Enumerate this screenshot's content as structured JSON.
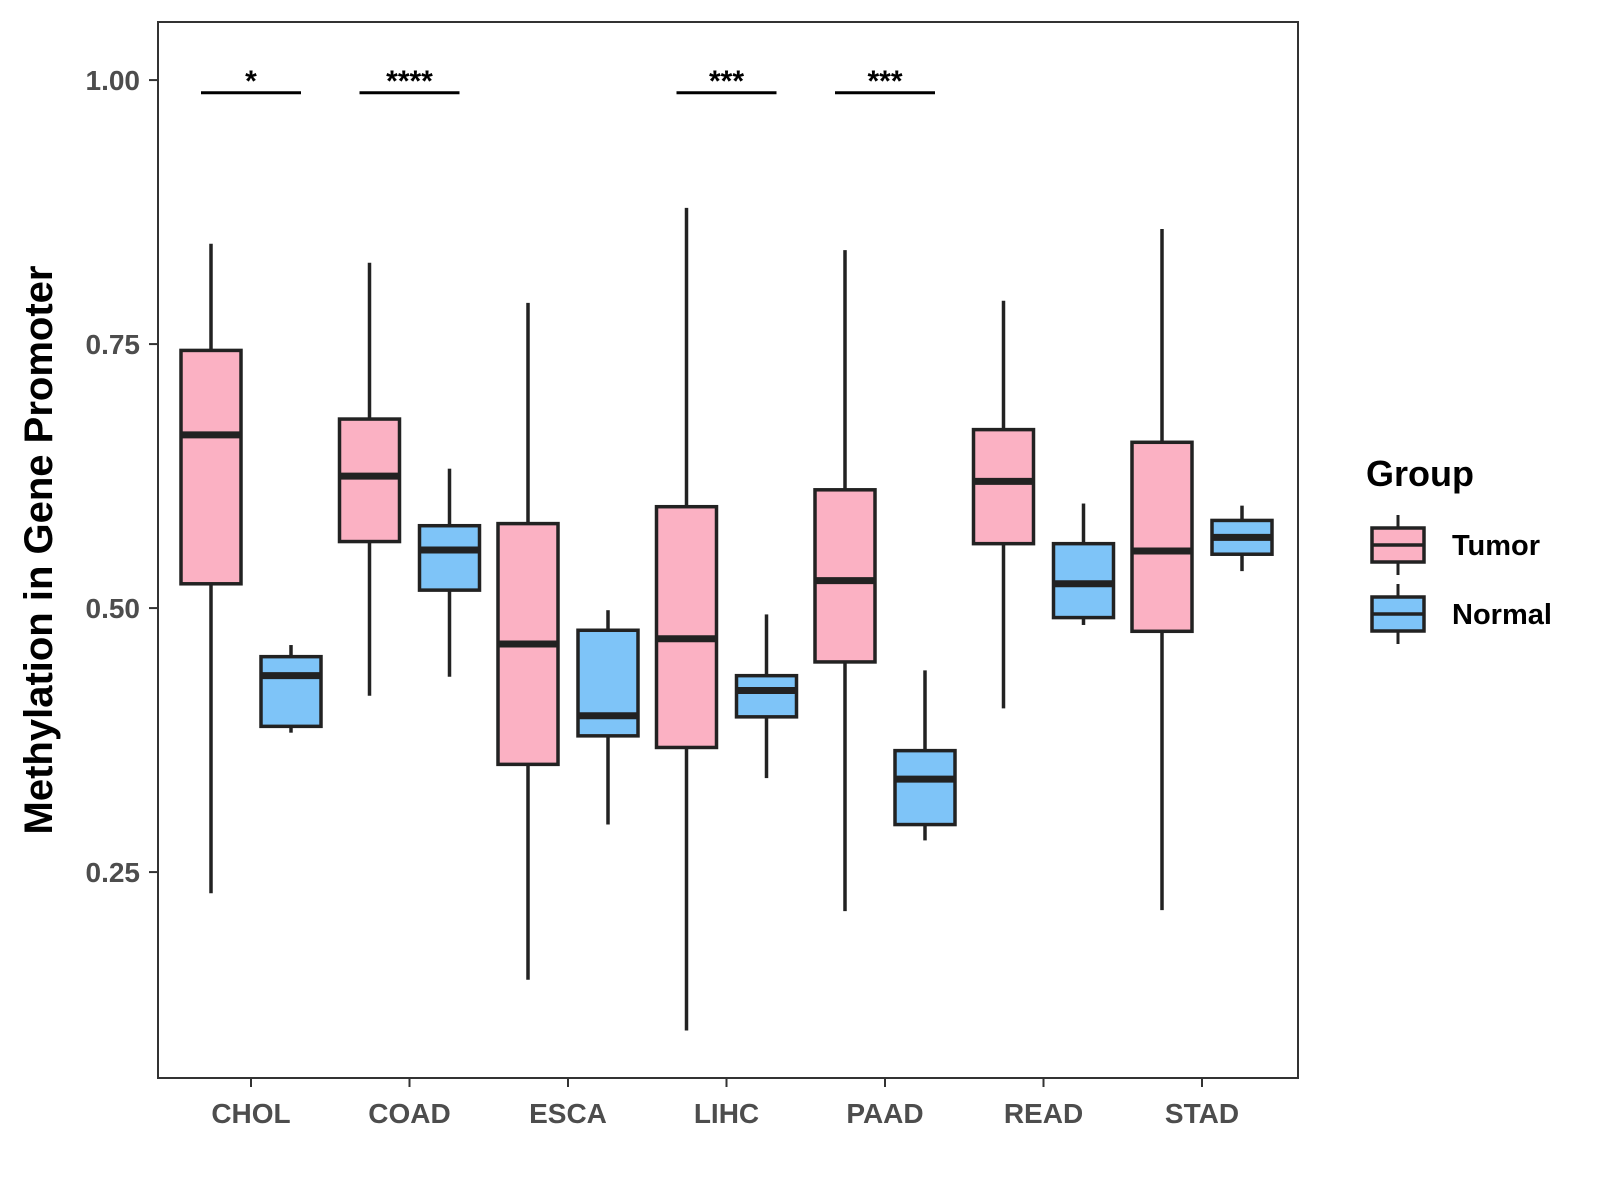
{
  "chart_data": {
    "type": "boxplot",
    "title": "",
    "xlabel": "",
    "ylabel": "Methylation in Gene Promoter",
    "ylim": [
      0.055,
      1.055
    ],
    "yticks": [
      0.25,
      0.5,
      0.75,
      1.0
    ],
    "ytick_labels": [
      "0.25",
      "0.50",
      "0.75",
      "1.00"
    ],
    "categories": [
      "CHOL",
      "COAD",
      "ESCA",
      "LIHC",
      "PAAD",
      "READ",
      "STAD"
    ],
    "legend": {
      "title": "Group",
      "position": "right",
      "entries": [
        {
          "name": "Tumor",
          "color": "#fbb1c3"
        },
        {
          "name": "Normal",
          "color": "#7ec4f8"
        }
      ]
    },
    "series": [
      {
        "name": "Tumor",
        "color": "#fbb1c3",
        "boxes": [
          {
            "category": "CHOL",
            "whisker_low": 0.23,
            "q1": 0.523,
            "median": 0.664,
            "q3": 0.744,
            "whisker_high": 0.845
          },
          {
            "category": "COAD",
            "whisker_low": 0.417,
            "q1": 0.563,
            "median": 0.625,
            "q3": 0.679,
            "whisker_high": 0.827
          },
          {
            "category": "ESCA",
            "whisker_low": 0.148,
            "q1": 0.352,
            "median": 0.466,
            "q3": 0.58,
            "whisker_high": 0.789
          },
          {
            "category": "LIHC",
            "whisker_low": 0.1,
            "q1": 0.368,
            "median": 0.471,
            "q3": 0.596,
            "whisker_high": 0.879
          },
          {
            "category": "PAAD",
            "whisker_low": 0.213,
            "q1": 0.449,
            "median": 0.526,
            "q3": 0.612,
            "whisker_high": 0.839
          },
          {
            "category": "READ",
            "whisker_low": 0.405,
            "q1": 0.561,
            "median": 0.62,
            "q3": 0.669,
            "whisker_high": 0.791
          },
          {
            "category": "STAD",
            "whisker_low": 0.214,
            "q1": 0.478,
            "median": 0.554,
            "q3": 0.657,
            "whisker_high": 0.859
          }
        ]
      },
      {
        "name": "Normal",
        "color": "#7ec4f8",
        "boxes": [
          {
            "category": "CHOL",
            "whisker_low": 0.382,
            "q1": 0.388,
            "median": 0.436,
            "q3": 0.454,
            "whisker_high": 0.465
          },
          {
            "category": "COAD",
            "whisker_low": 0.435,
            "q1": 0.517,
            "median": 0.555,
            "q3": 0.578,
            "whisker_high": 0.632
          },
          {
            "category": "ESCA",
            "whisker_low": 0.295,
            "q1": 0.379,
            "median": 0.398,
            "q3": 0.479,
            "whisker_high": 0.498
          },
          {
            "category": "LIHC",
            "whisker_low": 0.339,
            "q1": 0.397,
            "median": 0.422,
            "q3": 0.436,
            "whisker_high": 0.494
          },
          {
            "category": "PAAD",
            "whisker_low": 0.28,
            "q1": 0.295,
            "median": 0.338,
            "q3": 0.365,
            "whisker_high": 0.441
          },
          {
            "category": "READ",
            "whisker_low": 0.484,
            "q1": 0.491,
            "median": 0.523,
            "q3": 0.561,
            "whisker_high": 0.599
          },
          {
            "category": "STAD",
            "whisker_low": 0.535,
            "q1": 0.551,
            "median": 0.567,
            "q3": 0.583,
            "whisker_high": 0.597
          }
        ]
      }
    ],
    "significance": [
      {
        "category": "CHOL",
        "label": "*",
        "y": 0.988
      },
      {
        "category": "COAD",
        "label": "****",
        "y": 0.988
      },
      {
        "category": "LIHC",
        "label": "***",
        "y": 0.988
      },
      {
        "category": "PAAD",
        "label": "***",
        "y": 0.988
      }
    ]
  }
}
